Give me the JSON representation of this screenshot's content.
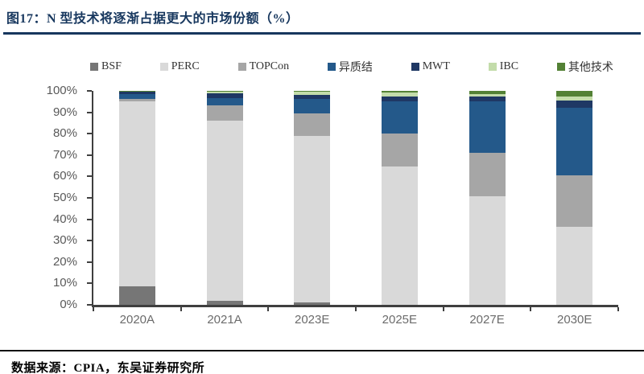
{
  "header": {
    "title": "图17：N 型技术将逐渐占据更大的市场份额（%）"
  },
  "footer": {
    "source": "数据来源：CPIA，东吴证券研究所"
  },
  "colors": {
    "title_navy": "#17375e",
    "axis_line": "#3f3f3f",
    "axis_label_gray": "#595959",
    "footer_rule": "#111111"
  },
  "chart_data": {
    "type": "bar",
    "stacked": true,
    "title": "N 型技术将逐渐占据更大的市场份额（%）",
    "legend_position": "top",
    "grid": false,
    "ylim": [
      0,
      100
    ],
    "y_tick_labels_top_to_bottom": [
      "100%",
      "90%",
      "80%",
      "70%",
      "60%",
      "50%",
      "40%",
      "30%",
      "20%",
      "10%",
      "0%"
    ],
    "categories": [
      "2020A",
      "2021A",
      "2023E",
      "2025E",
      "2027E",
      "2030E"
    ],
    "series": [
      {
        "name": "BSF",
        "color": "#767676",
        "values": [
          8.8,
          2.0,
          1.0,
          0.0,
          0.0,
          0.0
        ]
      },
      {
        "name": "PERC",
        "color": "#d9d9d9",
        "values": [
          86.4,
          84.2,
          78.0,
          64.7,
          50.8,
          36.3
        ]
      },
      {
        "name": "TOPCon",
        "color": "#a6a6a6",
        "values": [
          1.2,
          7.0,
          10.4,
          15.4,
          20.1,
          24.2
        ]
      },
      {
        "name": "异质结",
        "color": "#24598a",
        "values": [
          2.0,
          3.3,
          6.7,
          15.1,
          24.2,
          31.7
        ]
      },
      {
        "name": "MWT",
        "color": "#1f3864",
        "values": [
          1.1,
          2.3,
          1.9,
          2.0,
          2.3,
          3.4
        ]
      },
      {
        "name": "IBC",
        "color": "#c3dcaa",
        "values": [
          0.3,
          0.7,
          1.6,
          1.9,
          1.1,
          1.9
        ]
      },
      {
        "name": "其他技术",
        "color": "#538135",
        "values": [
          0.2,
          0.5,
          0.4,
          0.9,
          1.5,
          2.5
        ]
      }
    ]
  }
}
